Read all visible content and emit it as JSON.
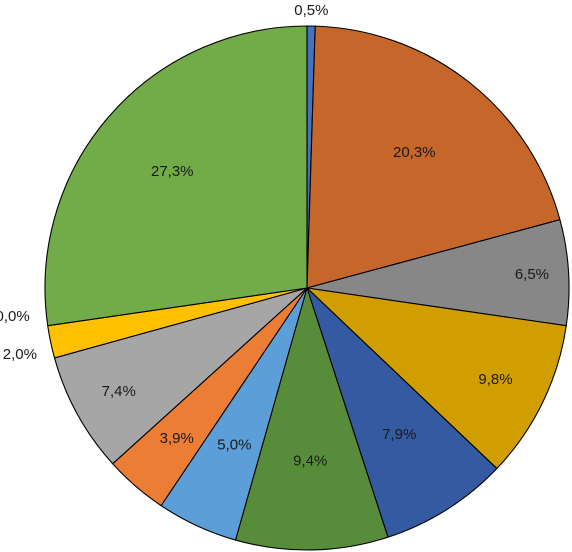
{
  "chart_data": {
    "type": "pie",
    "start": "top",
    "direction": "clockwise",
    "slices": [
      {
        "value": 0.5,
        "label": "0,5%",
        "color": "#4472c4"
      },
      {
        "value": 20.3,
        "label": "20,3%",
        "color": "#c5672a"
      },
      {
        "value": 6.5,
        "label": "6,5%",
        "color": "#878787"
      },
      {
        "value": 9.8,
        "label": "9,8%",
        "color": "#d19e00"
      },
      {
        "value": 7.9,
        "label": "7,9%",
        "color": "#345ba1"
      },
      {
        "value": 9.4,
        "label": "9,4%",
        "color": "#578d3a"
      },
      {
        "value": 5.0,
        "label": "5,0%",
        "color": "#5c9fd8"
      },
      {
        "value": 3.9,
        "label": "3,9%",
        "color": "#eb7d34"
      },
      {
        "value": 7.4,
        "label": "7,4%",
        "color": "#a6a6a6"
      },
      {
        "value": 2.0,
        "label": "2,0%",
        "color": "#ffc000"
      },
      {
        "value": 0.0,
        "label": "0,0%",
        "color": "#5b9bd5"
      },
      {
        "value": 27.3,
        "label": "27,3%",
        "color": "#71ac48"
      }
    ]
  }
}
